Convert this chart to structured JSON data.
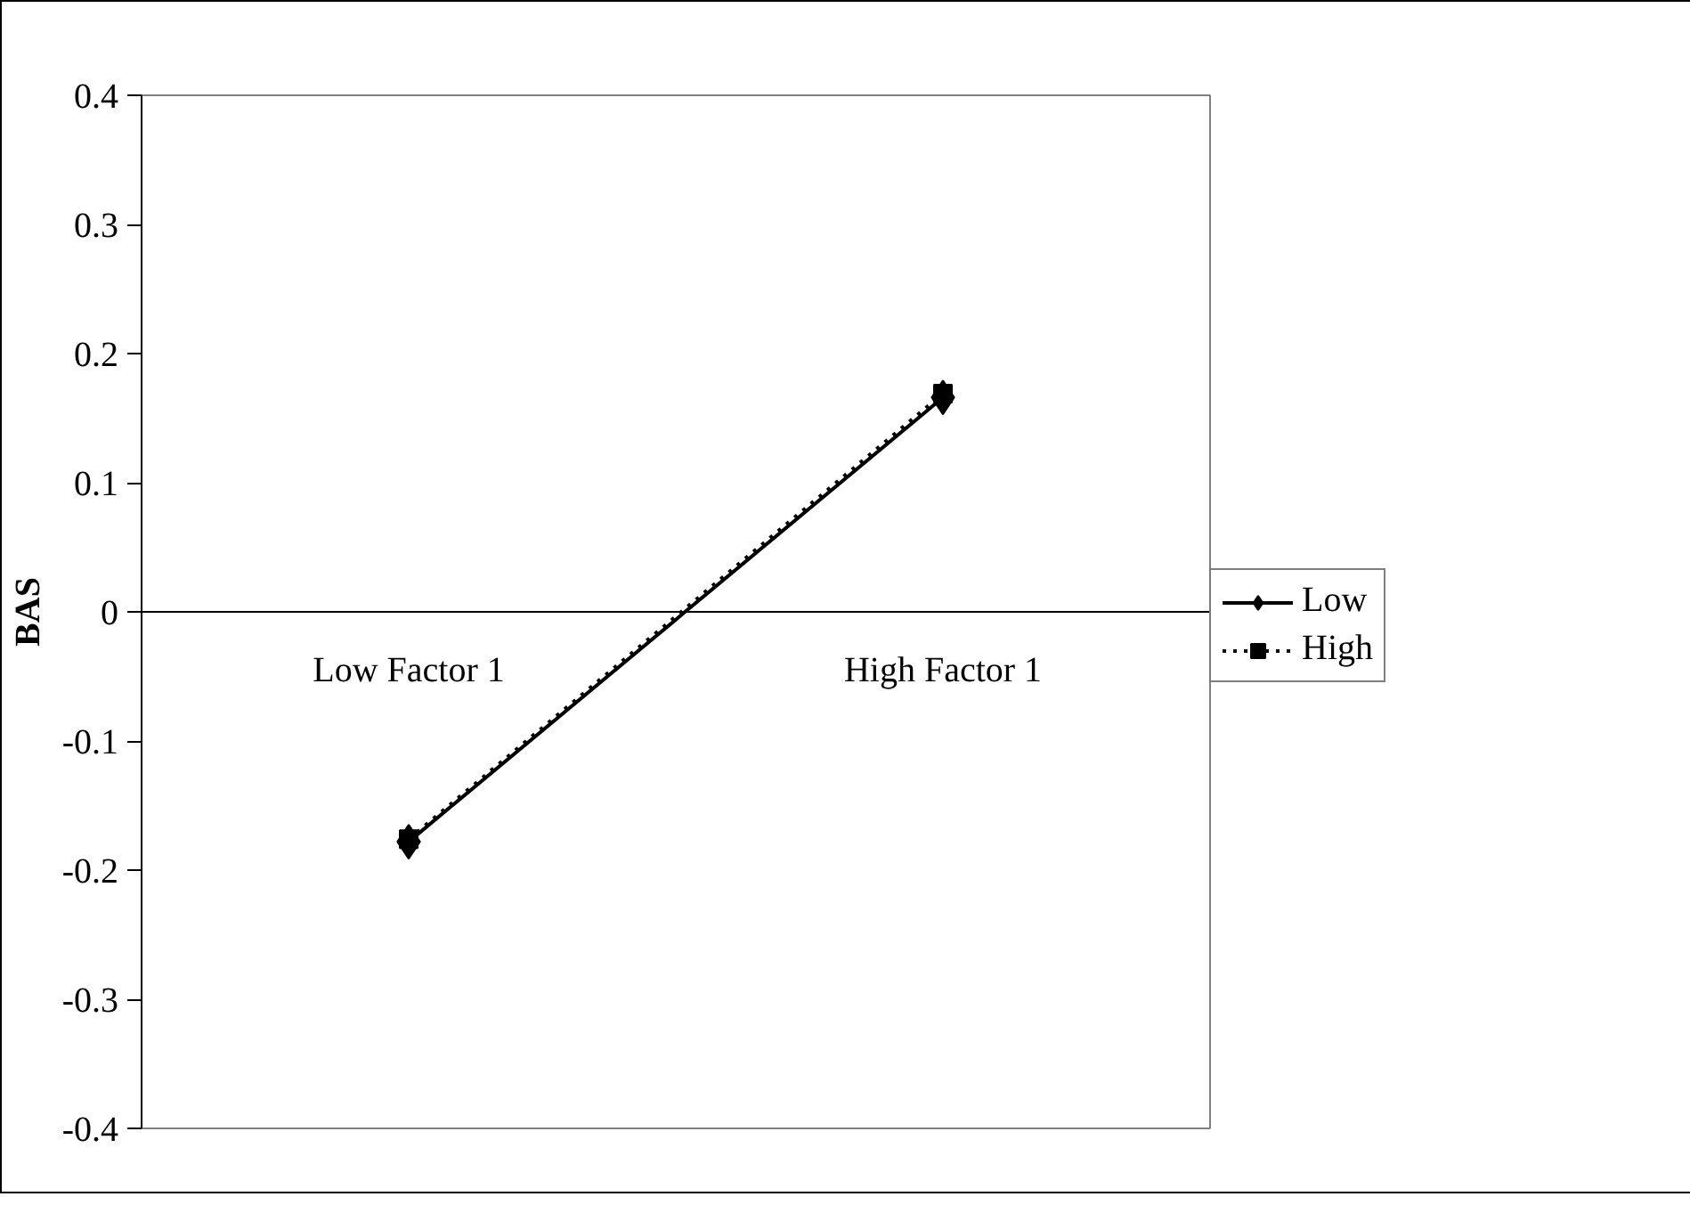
{
  "chart_data": {
    "type": "line",
    "ylabel": "BAS",
    "categories": [
      "Low Factor 1",
      "High Factor 1"
    ],
    "series": [
      {
        "name": "Low",
        "color": "#000000",
        "values": [
          -0.178,
          0.166
        ],
        "marker": "diamond",
        "line_style": "solid"
      },
      {
        "name": "High",
        "color": "#000000",
        "values": [
          -0.176,
          0.169
        ],
        "marker": "square",
        "line_style": "dotted"
      }
    ],
    "ylim": [
      -0.4,
      0.4
    ],
    "yticks": [
      -0.4,
      -0.3,
      -0.2,
      -0.1,
      0,
      0.1,
      0.2,
      0.3,
      0.4
    ],
    "grid": false,
    "legend": "right"
  }
}
